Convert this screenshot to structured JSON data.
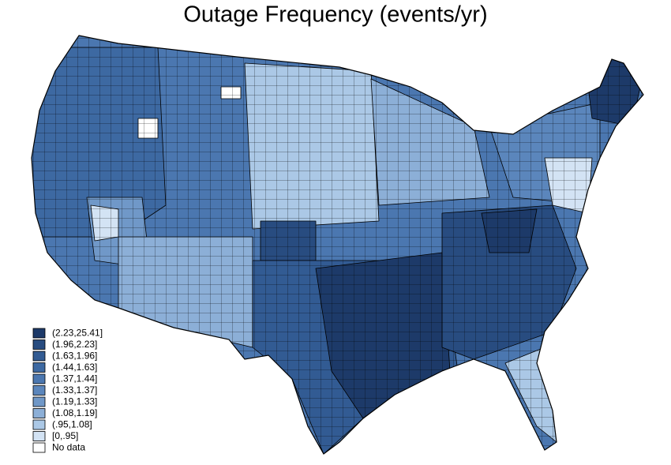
{
  "chart_data": {
    "type": "choropleth",
    "title": "Outage Frequency (events/yr)",
    "legend": [
      {
        "label": "(2.23,25.41]",
        "color": "#1d3a69"
      },
      {
        "label": "(1.96,2.23]",
        "color": "#284c80"
      },
      {
        "label": "(1.63,1.96]",
        "color": "#325b93"
      },
      {
        "label": "(1.44,1.63]",
        "color": "#3d69a2"
      },
      {
        "label": "(1.37,1.44]",
        "color": "#4b77b0"
      },
      {
        "label": "(1.33,1.37]",
        "color": "#5b86bc"
      },
      {
        "label": "(1.19,1.33]",
        "color": "#7098c8"
      },
      {
        "label": "(1.08,1.19]",
        "color": "#8cafd7"
      },
      {
        "label": "(.95,1.08]",
        "color": "#abc8e6"
      },
      {
        "label": "[0,.95]",
        "color": "#d3e3f4"
      },
      {
        "label": "No data",
        "color": "#ffffff"
      }
    ]
  }
}
